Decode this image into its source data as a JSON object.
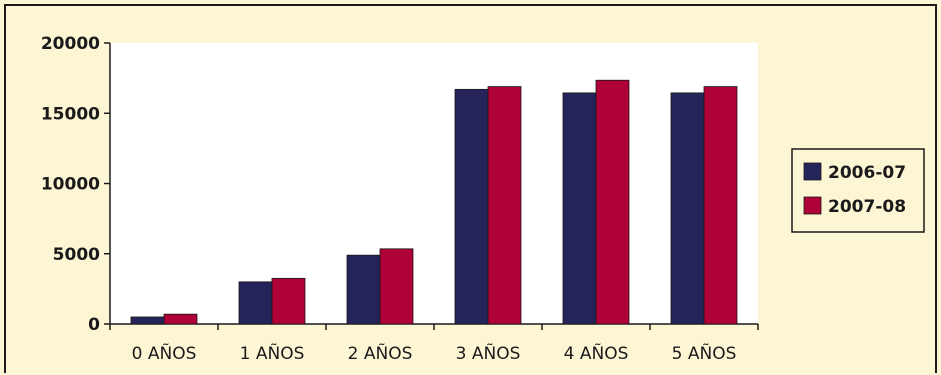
{
  "chart_data": {
    "type": "bar",
    "title": "",
    "xlabel": "",
    "ylabel": "",
    "categories": [
      "0 AÑOS",
      "1 AÑOS",
      "2 AÑOS",
      "3 AÑOS",
      "4 AÑOS",
      "5 AÑOS"
    ],
    "series": [
      {
        "name": "2006-07",
        "color": "#24235a",
        "values": [
          500,
          3000,
          4900,
          16700,
          16450,
          16450
        ]
      },
      {
        "name": "2007-08",
        "color": "#b00038",
        "values": [
          700,
          3250,
          5350,
          16900,
          17350,
          16900
        ]
      }
    ],
    "ylim": [
      0,
      20000
    ],
    "yticks": [
      0,
      5000,
      10000,
      15000,
      20000
    ],
    "grid": false,
    "legend": "right",
    "plot_background": "#ffffff"
  }
}
